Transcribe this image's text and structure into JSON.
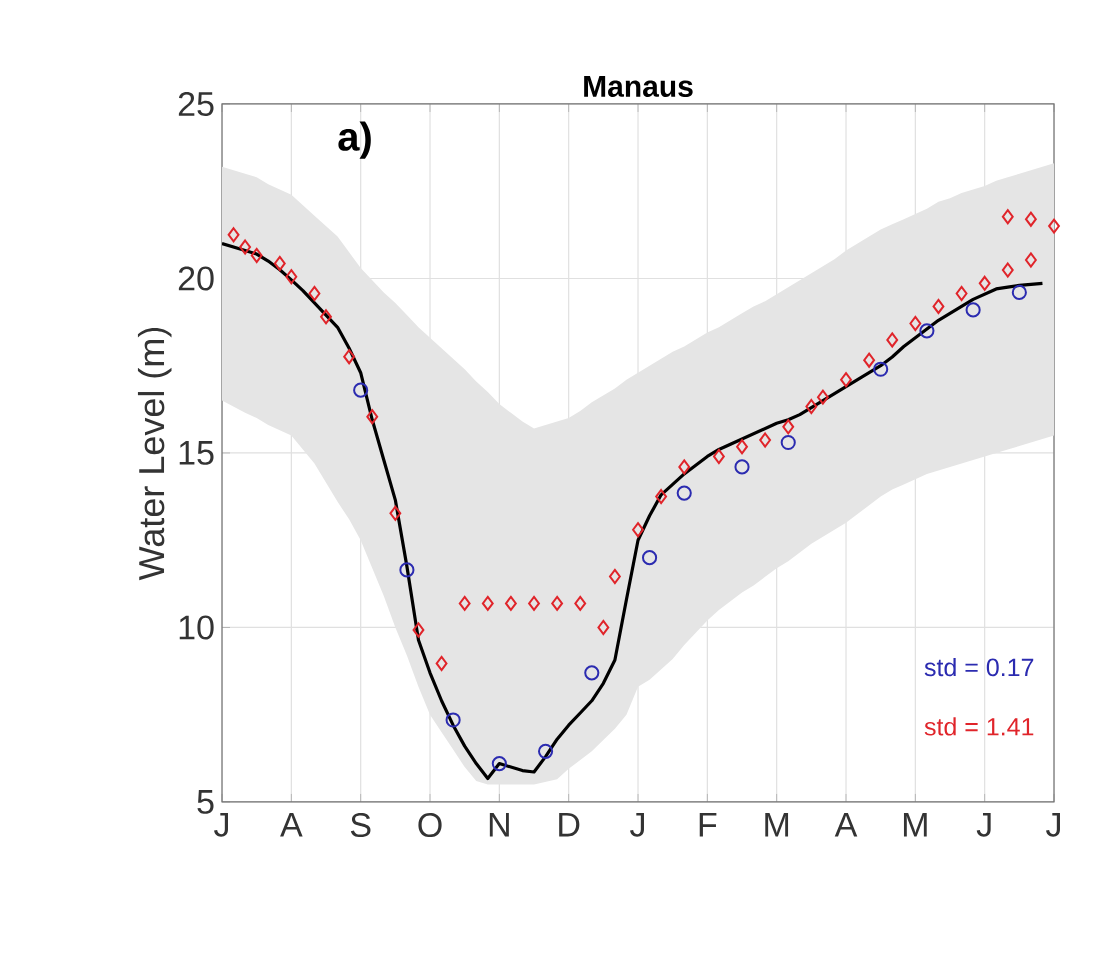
{
  "chart_data": {
    "type": "line",
    "title": "Manaus",
    "ylabel": "Water Level (m)",
    "ylim": [
      5,
      25
    ],
    "yticks": [
      5,
      10,
      15,
      20,
      25
    ],
    "categories": [
      "J",
      null,
      null,
      null,
      null,
      null,
      "A",
      null,
      null,
      null,
      null,
      null,
      "S",
      null,
      null,
      null,
      null,
      null,
      "O",
      null,
      null,
      null,
      null,
      null,
      "N",
      null,
      null,
      null,
      null,
      null,
      "D",
      null,
      null,
      null,
      null,
      null,
      "J",
      null,
      null,
      null,
      null,
      null,
      "F",
      null,
      null,
      null,
      null,
      null,
      "M",
      null,
      null,
      null,
      null,
      null,
      "A",
      null,
      null,
      null,
      null,
      null,
      "M",
      null,
      null,
      null,
      null,
      null,
      "J",
      null,
      null,
      null,
      null,
      null,
      "J"
    ],
    "grid": true,
    "annotations": [
      "a)",
      "std = 0.17",
      "std = 1.41"
    ],
    "series": [
      {
        "color": "#000000",
        "marker": "none",
        "line_style": "solid",
        "values": [
          21.0,
          20.9,
          20.8,
          20.7,
          20.5,
          20.25,
          19.96,
          19.65,
          19.3,
          18.95,
          18.6,
          18.0,
          17.3,
          15.95,
          14.8,
          13.65,
          11.75,
          9.64,
          8.7,
          7.9,
          7.2,
          6.6,
          6.1,
          5.67,
          6.1,
          6.0,
          5.9,
          5.86,
          6.3,
          6.8,
          7.2,
          7.55,
          7.9,
          8.4,
          9.07,
          10.8,
          12.5,
          13.2,
          13.8,
          14.1,
          14.4,
          14.65,
          14.9,
          15.1,
          15.25,
          15.4,
          15.55,
          15.7,
          15.85,
          15.95,
          16.1,
          16.3,
          16.5,
          16.7,
          16.9,
          17.1,
          17.3,
          17.5,
          17.75,
          18.05,
          18.3,
          18.55,
          18.8,
          19.0,
          19.2,
          19.4,
          19.55,
          19.7,
          19.75,
          19.8,
          19.83,
          19.86,
          null
        ],
        "upper": [
          23.2,
          null,
          23.0,
          22.9,
          22.7,
          22.55,
          22.4,
          22.1,
          21.8,
          null,
          21.2,
          20.75,
          20.3,
          19.95,
          19.6,
          19.3,
          18.95,
          18.6,
          18.3,
          18.0,
          17.7,
          17.4,
          17.05,
          16.75,
          16.4,
          16.15,
          15.9,
          15.7,
          null,
          15.9,
          16.0,
          16.2,
          16.45,
          null,
          16.85,
          17.1,
          17.3,
          17.5,
          17.7,
          17.9,
          18.05,
          18.25,
          18.45,
          18.6,
          18.8,
          19.0,
          19.2,
          19.35,
          19.55,
          19.75,
          null,
          20.15,
          20.35,
          20.55,
          20.8,
          21.0,
          21.2,
          21.4,
          21.55,
          21.7,
          21.85,
          22.0,
          22.2,
          22.3,
          22.45,
          null,
          22.65,
          22.8,
          22.9,
          23.0,
          null,
          23.2,
          23.3
        ],
        "lower": [
          16.5,
          null,
          16.15,
          16.0,
          15.8,
          15.65,
          15.5,
          15.1,
          14.7,
          null,
          13.6,
          13.1,
          12.5,
          11.7,
          10.9,
          10.0,
          9.2,
          8.3,
          7.5,
          7.0,
          6.5,
          6.0,
          5.6,
          5.5,
          5.5,
          5.5,
          5.5,
          5.5,
          null,
          5.65,
          5.95,
          6.2,
          6.45,
          null,
          7.1,
          7.5,
          8.3,
          8.5,
          8.8,
          9.1,
          9.5,
          9.85,
          10.2,
          10.5,
          10.75,
          11.0,
          11.2,
          11.45,
          11.7,
          11.9,
          null,
          12.4,
          12.6,
          12.8,
          13.0,
          13.25,
          13.5,
          13.75,
          13.95,
          14.1,
          14.25,
          14.4,
          14.5,
          14.6,
          14.7,
          null,
          14.9,
          15.0,
          15.1,
          15.2,
          null,
          15.4,
          15.5
        ]
      },
      {
        "type": "scatter",
        "color": "#2b2bb0",
        "marker": "circle",
        "values": [
          null,
          null,
          null,
          null,
          null,
          null,
          null,
          null,
          null,
          null,
          null,
          null,
          16.8,
          null,
          null,
          null,
          11.65,
          null,
          null,
          null,
          7.35,
          null,
          null,
          null,
          6.1,
          null,
          null,
          null,
          6.45,
          null,
          null,
          null,
          8.7,
          null,
          null,
          null,
          null,
          12.0,
          null,
          null,
          13.85,
          null,
          null,
          null,
          null,
          14.6,
          null,
          null,
          null,
          15.3,
          null,
          null,
          null,
          null,
          null,
          null,
          null,
          17.4,
          null,
          null,
          null,
          18.5,
          null,
          null,
          null,
          19.1,
          null,
          null,
          null,
          19.6,
          null,
          null,
          null
        ]
      },
      {
        "type": "scatter",
        "color": "#e0242a",
        "marker": "diamond",
        "values": [
          null,
          21.25,
          20.9,
          20.66,
          null,
          20.43,
          20.05,
          null,
          19.57,
          18.9,
          null,
          17.76,
          null,
          16.04,
          null,
          13.27,
          null,
          9.93,
          null,
          8.97,
          null,
          10.69,
          null,
          10.69,
          null,
          10.69,
          null,
          10.69,
          null,
          10.69,
          null,
          10.69,
          null,
          10.0,
          11.46,
          null,
          12.8,
          null,
          13.75,
          null,
          14.6,
          null,
          null,
          14.9,
          null,
          15.18,
          null,
          15.37,
          null,
          15.75,
          null,
          16.33,
          16.6,
          null,
          17.1,
          null,
          17.66,
          null,
          18.24,
          null,
          18.71,
          null,
          19.2,
          null,
          19.57,
          null,
          19.86,
          null,
          20.24,
          null,
          20.53,
          null,
          null
        ]
      },
      {
        "type": "scatter",
        "color": "#e0242a",
        "marker": "diamond",
        "values": [
          null,
          null,
          null,
          null,
          null,
          null,
          null,
          null,
          null,
          null,
          null,
          null,
          null,
          null,
          null,
          null,
          null,
          null,
          null,
          null,
          null,
          null,
          null,
          null,
          null,
          null,
          null,
          null,
          null,
          null,
          null,
          null,
          null,
          null,
          null,
          null,
          null,
          null,
          null,
          null,
          null,
          null,
          null,
          null,
          null,
          null,
          null,
          null,
          null,
          null,
          null,
          null,
          null,
          null,
          null,
          null,
          null,
          null,
          null,
          null,
          null,
          null,
          null,
          null,
          null,
          null,
          null,
          null,
          21.77,
          null,
          21.7,
          null,
          21.5
        ]
      }
    ]
  }
}
